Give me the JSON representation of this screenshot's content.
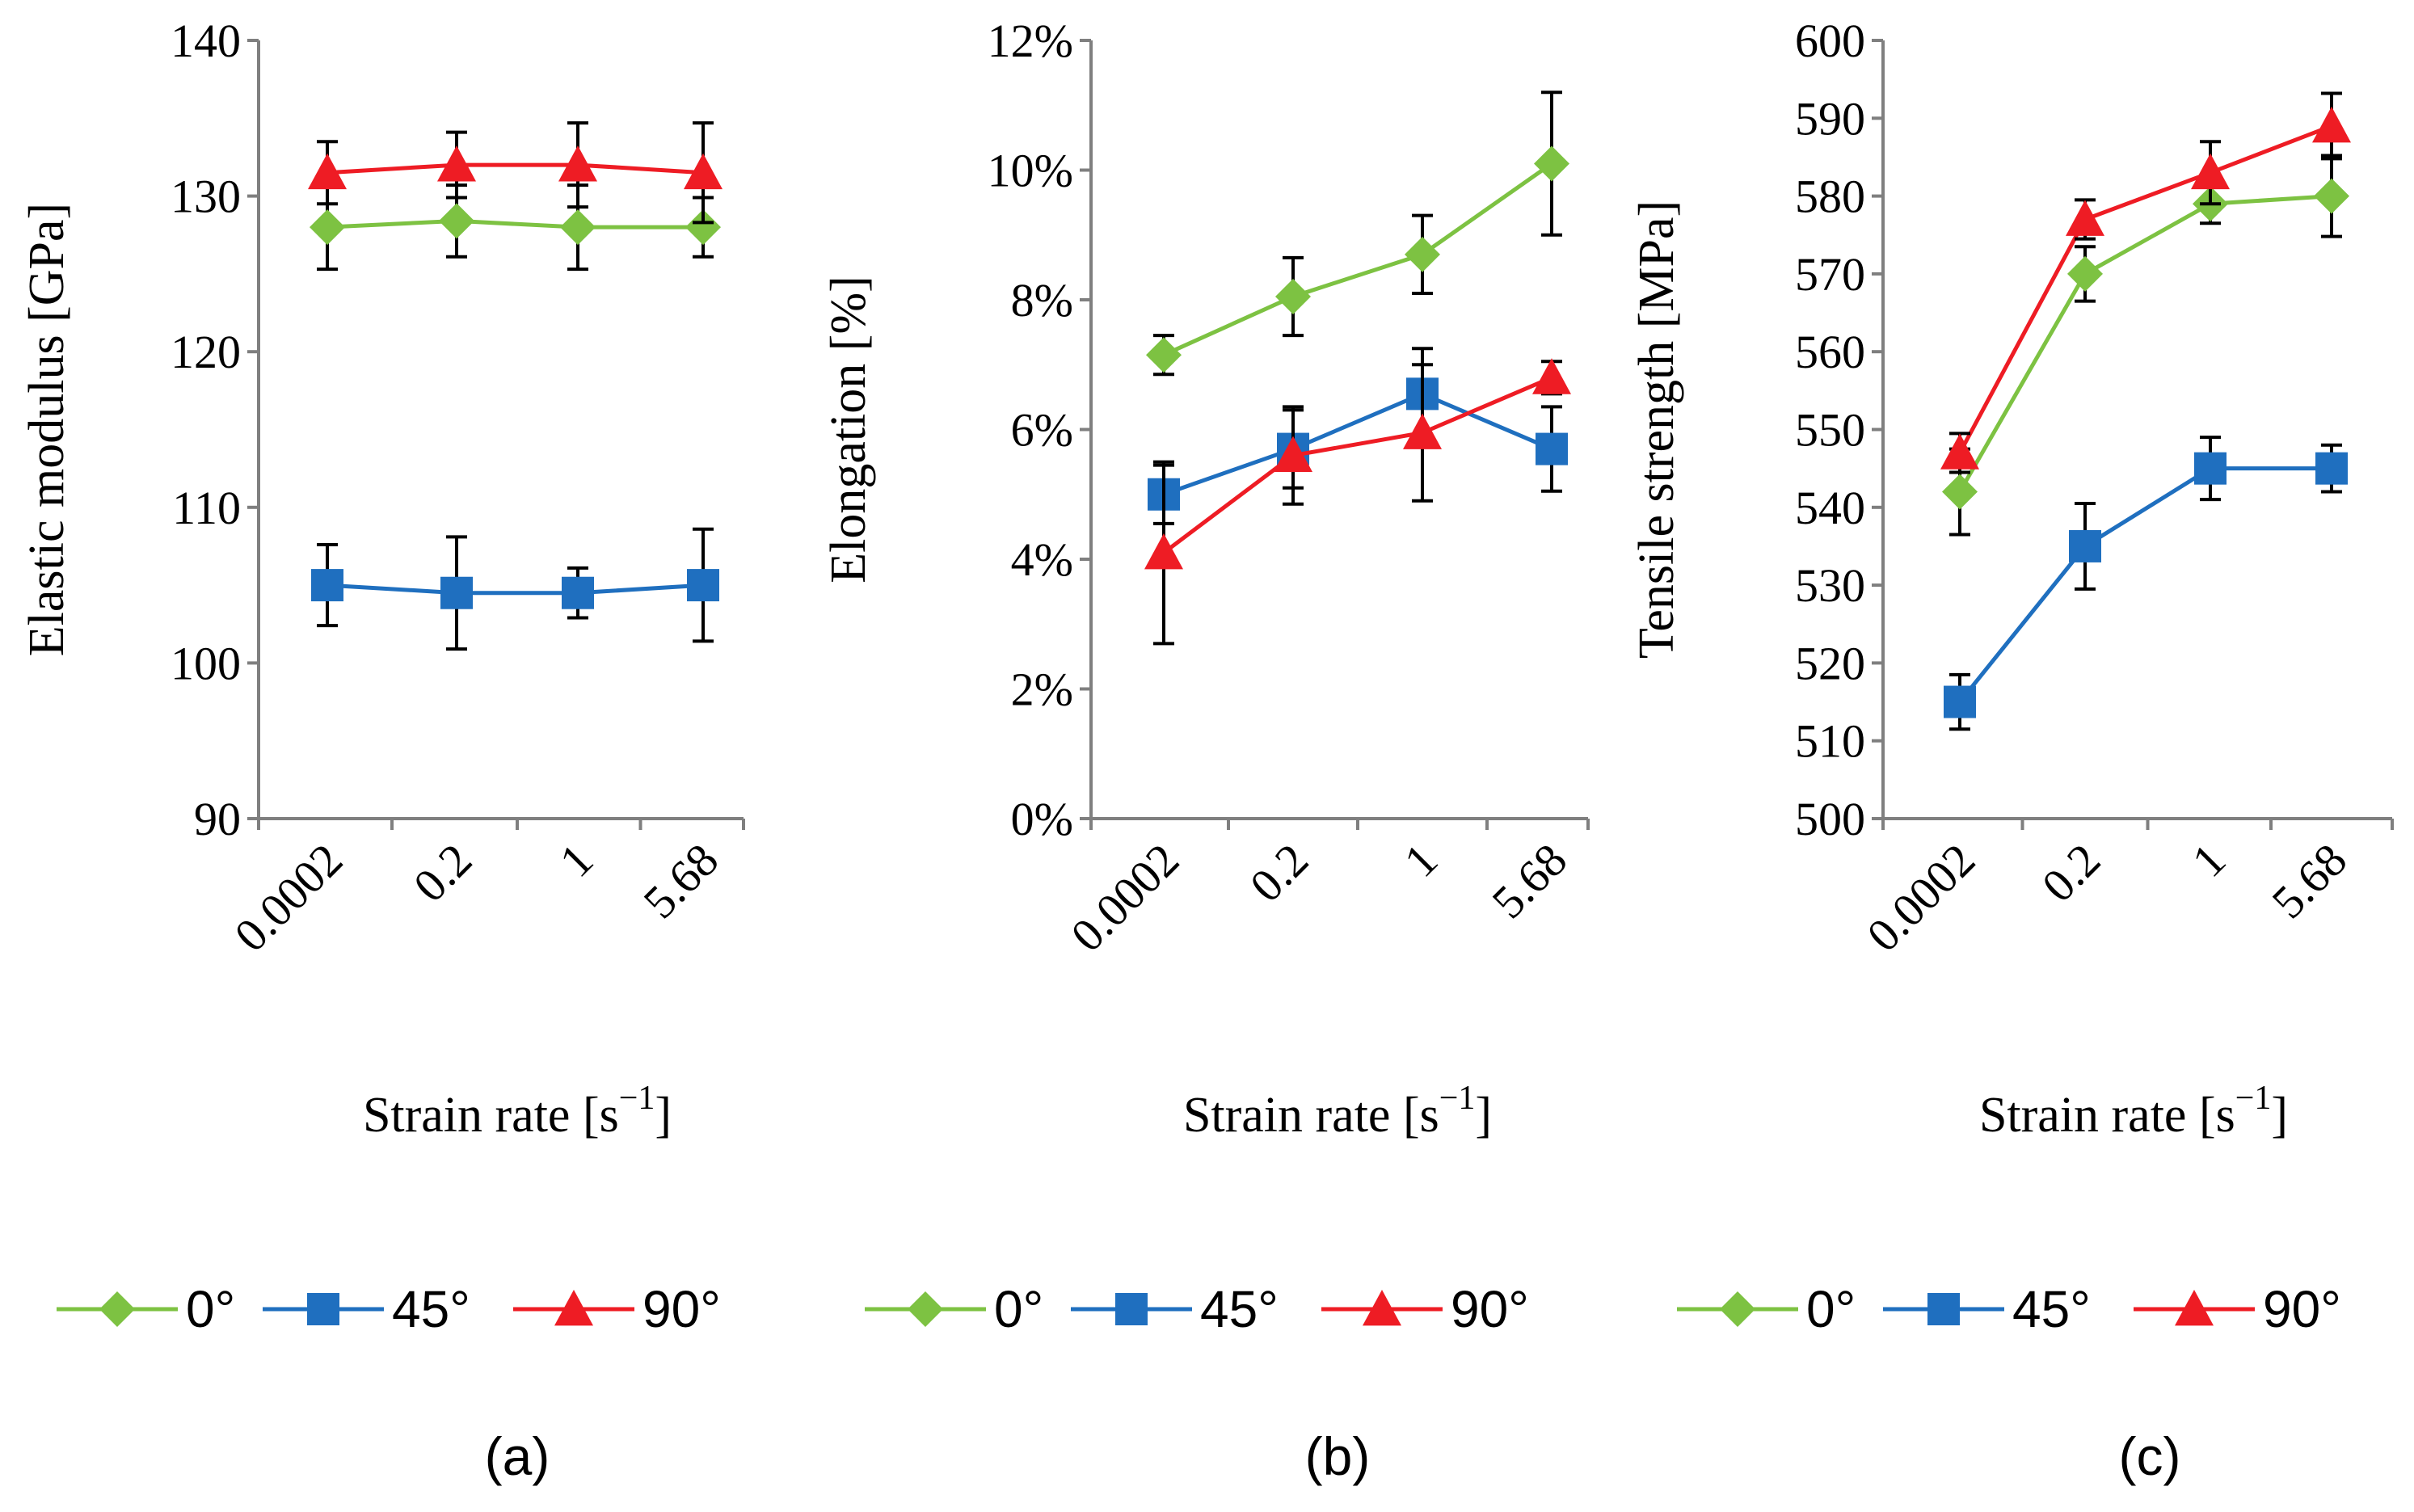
{
  "chart_data": [
    {
      "type": "line",
      "panel_label": "(a)",
      "xlabel": "Strain rate [s",
      "xlabel_sup": "−1",
      "xlabel_close": "]",
      "ylabel": "Elastic modulus [GPa]",
      "categories": [
        "0.0002",
        "0.2",
        "1",
        "5.68"
      ],
      "ylim": [
        90,
        140
      ],
      "ytick_values": [
        90,
        100,
        110,
        120,
        130,
        140
      ],
      "ytick_labels": [
        "90",
        "100",
        "110",
        "120",
        "130",
        "140"
      ],
      "series": [
        {
          "name": "0°",
          "color": "#7dc242",
          "marker": "diamond",
          "values": [
            128,
            128.4,
            128,
            128
          ],
          "errors": [
            2.7,
            2.3,
            2.7,
            1.9
          ]
        },
        {
          "name": "45°",
          "color": "#1f6fbf",
          "marker": "square",
          "values": [
            105,
            104.5,
            104.5,
            105
          ],
          "errors": [
            2.6,
            3.6,
            1.6,
            3.6
          ]
        },
        {
          "name": "90°",
          "color": "#ee1c24",
          "marker": "triangle",
          "values": [
            131.5,
            132,
            132,
            131.5
          ],
          "errors": [
            2.0,
            2.1,
            2.7,
            3.2
          ]
        }
      ],
      "legend": [
        "0°",
        "45°",
        "90°"
      ]
    },
    {
      "type": "line",
      "panel_label": "(b)",
      "xlabel": "Strain rate [s",
      "xlabel_sup": "−1",
      "xlabel_close": "]",
      "ylabel": "Elongation [%]",
      "categories": [
        "0.0002",
        "0.2",
        "1",
        "5.68"
      ],
      "ylim": [
        0,
        12
      ],
      "ytick_values": [
        0,
        2,
        4,
        6,
        8,
        10,
        12
      ],
      "ytick_labels": [
        "0%",
        "2%",
        "4%",
        "6%",
        "8%",
        "10%",
        "12%"
      ],
      "series": [
        {
          "name": "0°",
          "color": "#7dc242",
          "marker": "diamond",
          "values": [
            7.15,
            8.05,
            8.7,
            10.1
          ],
          "errors": [
            0.3,
            0.6,
            0.6,
            1.1
          ]
        },
        {
          "name": "45°",
          "color": "#1f6fbf",
          "marker": "square",
          "values": [
            5.0,
            5.7,
            6.55,
            5.7
          ],
          "errors": [
            0.45,
            0.6,
            0.7,
            0.65
          ]
        },
        {
          "name": "90°",
          "color": "#ee1c24",
          "marker": "triangle",
          "values": [
            4.1,
            5.6,
            5.95,
            6.8
          ],
          "errors": [
            1.4,
            0.75,
            1.05,
            0.25
          ]
        }
      ],
      "legend": [
        "0°",
        "45°",
        "90°"
      ]
    },
    {
      "type": "line",
      "panel_label": "(c)",
      "xlabel": "Strain rate [s",
      "xlabel_sup": "−1",
      "xlabel_close": "]",
      "ylabel": "Tensile strength [MPa]",
      "categories": [
        "0.0002",
        "0.2",
        "1",
        "5.68"
      ],
      "ylim": [
        500,
        600
      ],
      "ytick_values": [
        500,
        510,
        520,
        530,
        540,
        550,
        560,
        570,
        580,
        590,
        600
      ],
      "ytick_labels": [
        "500",
        "510",
        "520",
        "530",
        "540",
        "550",
        "560",
        "570",
        "580",
        "590",
        "600"
      ],
      "series": [
        {
          "name": "0°",
          "color": "#7dc242",
          "marker": "diamond",
          "values": [
            542,
            570,
            579,
            580
          ],
          "errors": [
            5.5,
            3.5,
            2.5,
            5.2
          ]
        },
        {
          "name": "45°",
          "color": "#1f6fbf",
          "marker": "square",
          "values": [
            515,
            535,
            545,
            545
          ],
          "errors": [
            3.5,
            5.5,
            4.0,
            3.0
          ]
        },
        {
          "name": "90°",
          "color": "#ee1c24",
          "marker": "triangle",
          "values": [
            547,
            577,
            583,
            589
          ],
          "errors": [
            2.5,
            2.5,
            4.0,
            4.2
          ]
        }
      ],
      "legend": [
        "0°",
        "45°",
        "90°"
      ]
    }
  ]
}
